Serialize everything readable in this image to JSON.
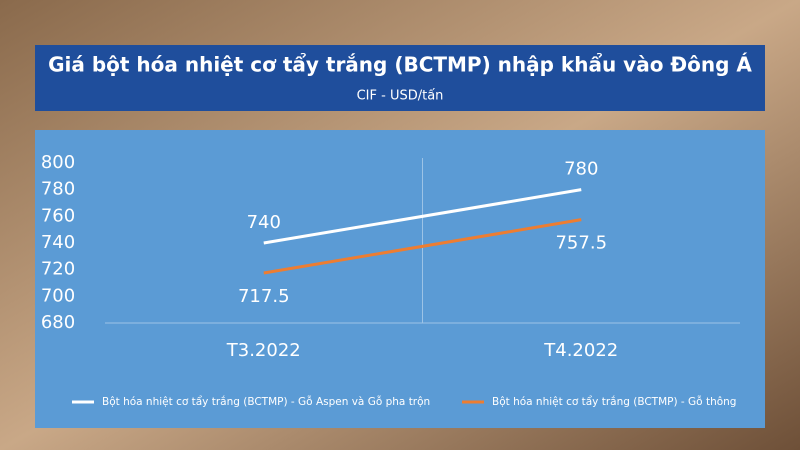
{
  "chart_data": {
    "type": "line",
    "title": "Giá bột hóa nhiệt cơ tẩy trắng (BCTMP) nhập khẩu vào Đông Á",
    "subtitle": "CIF - USD/tấn",
    "categories": [
      "T3.2022",
      "T4.2022"
    ],
    "series": [
      {
        "name": "Bột hóa nhiệt cơ tẩy trắng (BCTMP) - Gỗ Aspen và Gỗ pha trộn",
        "color": "#ffffff",
        "values": [
          740,
          780
        ]
      },
      {
        "name": "Bột hóa nhiệt cơ tẩy trắng (BCTMP) - Gỗ thông",
        "color": "#ed7d31",
        "values": [
          717.5,
          757.5
        ]
      }
    ],
    "ylim": [
      680,
      800
    ],
    "yticks": [
      680,
      700,
      720,
      740,
      760,
      780,
      800
    ],
    "grid": false,
    "legend": "bottom"
  }
}
